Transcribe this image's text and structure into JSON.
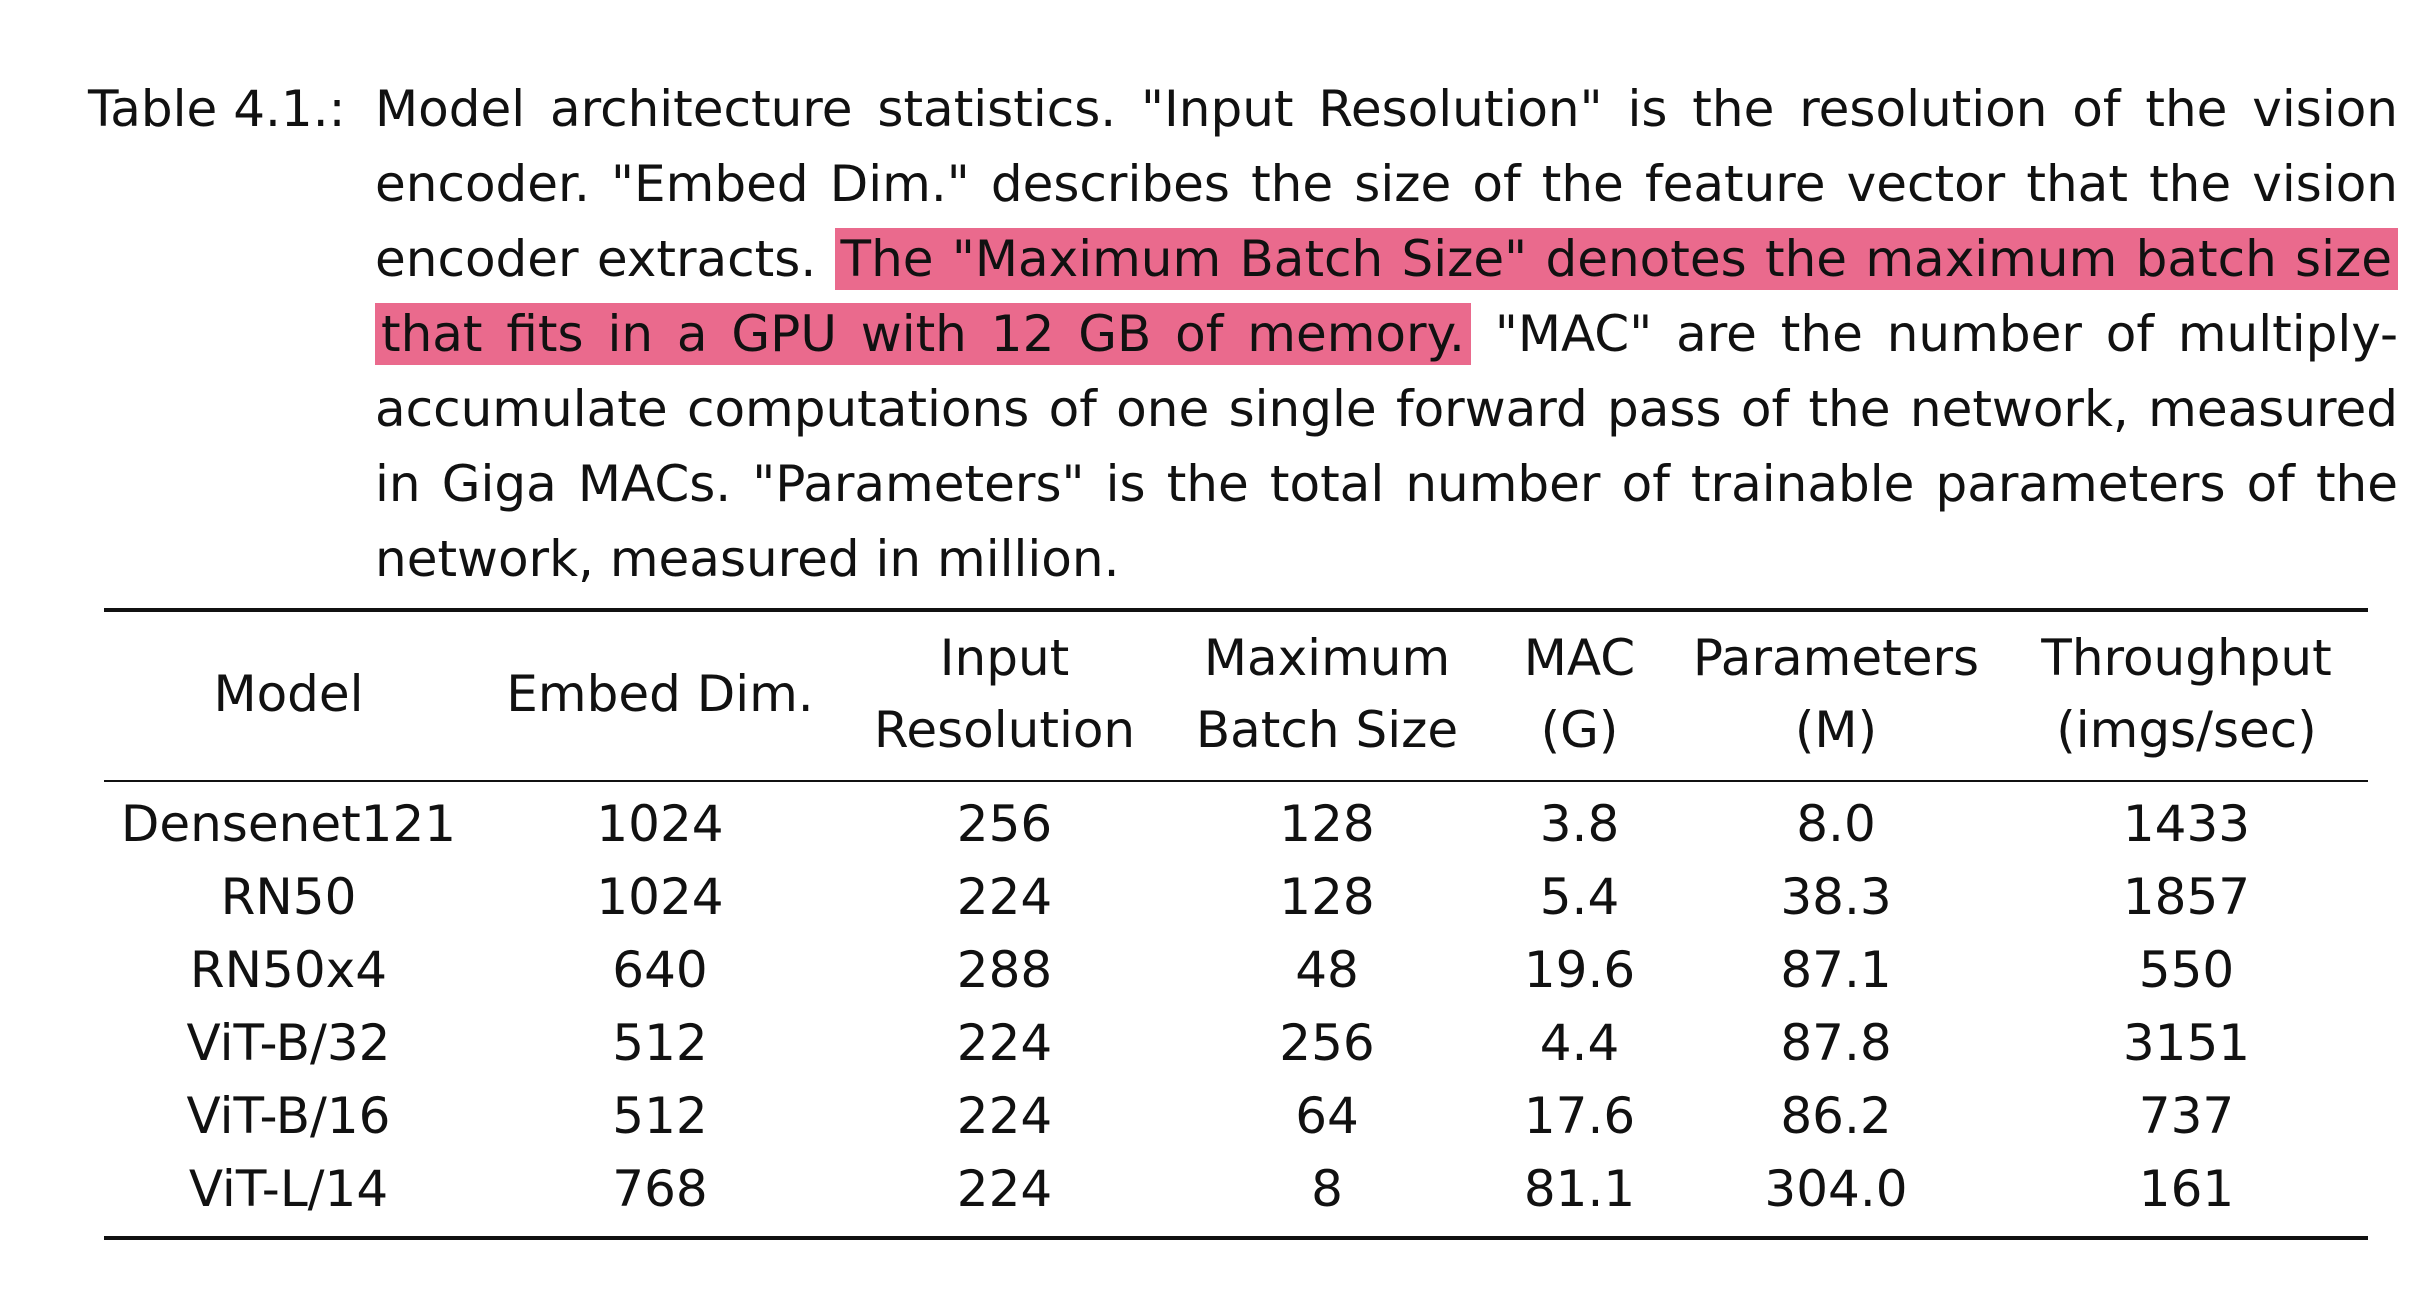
{
  "caption": {
    "label": "Table 4.1.:",
    "text_part1": "Model architecture statistics. \"Input Resolution\" is the resolution of the vision encoder. \"Embed Dim.\" describes the size of the feature vector that the vision encoder extracts. ",
    "text_highlight": "The \"Maximum Batch Size\" denotes the maximum batch size that fits in a GPU with 12 GB of memory.",
    "text_part2": " \"MAC\" are the number of multiply-accumulate computations of one single forward pass of the network, measured in Giga MACs. \"Parameters\" is the total number of trainable parameters of the network, measured in million.",
    "highlight_color": "#ea6a8d"
  },
  "table": {
    "headers": [
      {
        "line1": "Model",
        "line2": ""
      },
      {
        "line1": "Embed Dim.",
        "line2": ""
      },
      {
        "line1": "Input",
        "line2": "Resolution"
      },
      {
        "line1": "Maximum",
        "line2": "Batch Size"
      },
      {
        "line1": "MAC",
        "line2": "(G)"
      },
      {
        "line1": "Parameters",
        "line2": "(M)"
      },
      {
        "line1": "Throughput",
        "line2": "(imgs/sec)"
      }
    ],
    "rows": [
      [
        "Densenet121",
        "1024",
        "256",
        "128",
        "3.8",
        "8.0",
        "1433"
      ],
      [
        "RN50",
        "1024",
        "224",
        "128",
        "5.4",
        "38.3",
        "1857"
      ],
      [
        "RN50x4",
        "640",
        "288",
        "48",
        "19.6",
        "87.1",
        "550"
      ],
      [
        "ViT-B/32",
        "512",
        "224",
        "256",
        "4.4",
        "87.8",
        "3151"
      ],
      [
        "ViT-B/16",
        "512",
        "224",
        "64",
        "17.6",
        "86.2",
        "737"
      ],
      [
        "ViT-L/14",
        "768",
        "224",
        "8",
        "81.1",
        "304.0",
        "161"
      ]
    ]
  }
}
